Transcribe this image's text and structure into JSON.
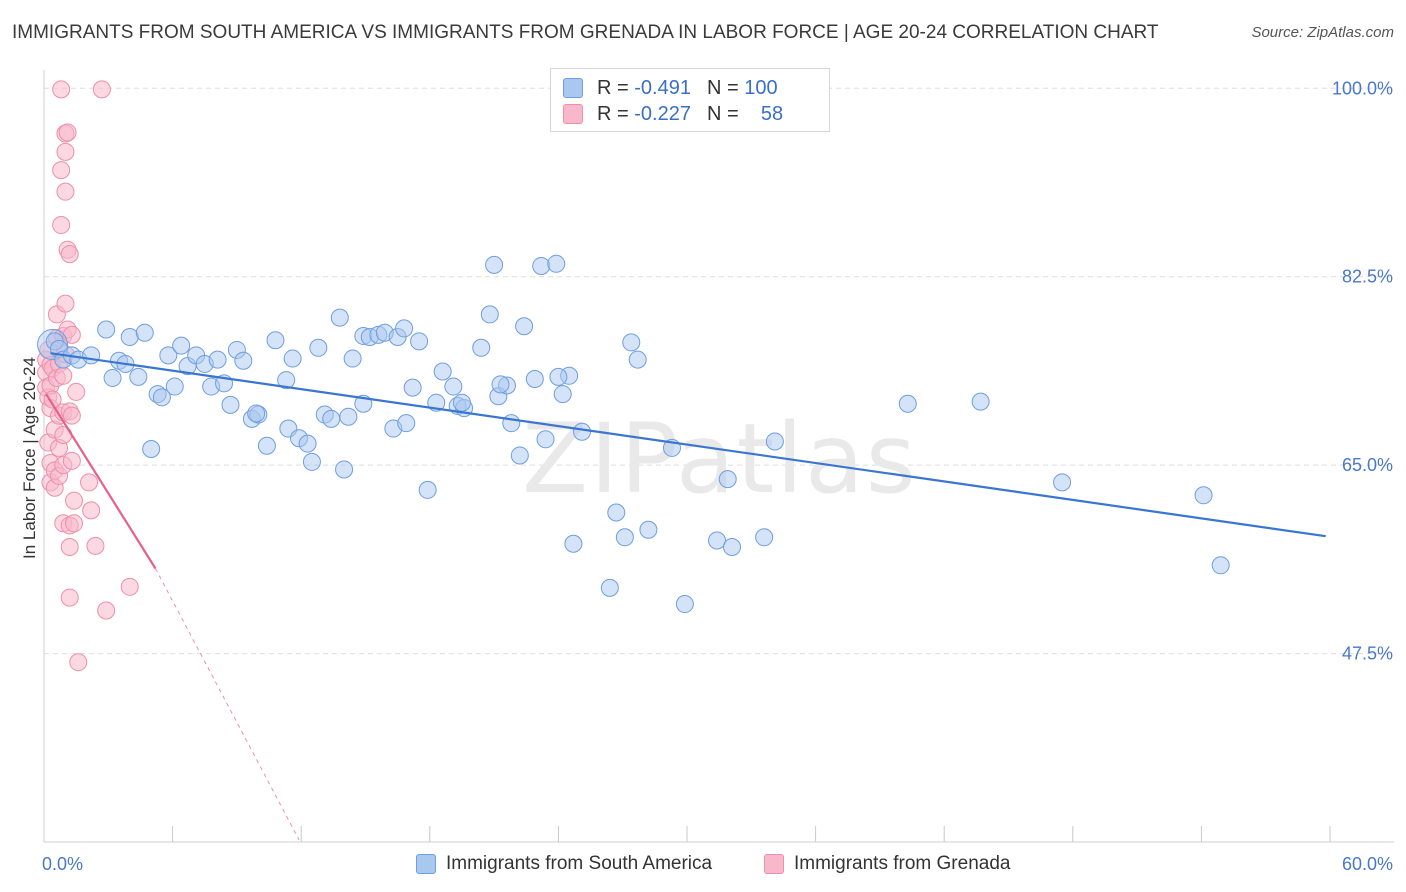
{
  "title": "IMMIGRANTS FROM SOUTH AMERICA VS IMMIGRANTS FROM GRENADA IN LABOR FORCE | AGE 20-24 CORRELATION CHART",
  "source": "Source: ZipAtlas.com",
  "watermark": "ZIPatlas",
  "legend": {
    "rows": [
      {
        "r_label": "R =",
        "r_value": "-0.491",
        "n_label": "N =",
        "n_value": "100"
      },
      {
        "r_label": "R =",
        "r_value": "-0.227",
        "n_label": "N =",
        "n_value": "58"
      }
    ]
  },
  "colors": {
    "blue_fill": "#a9c8f0",
    "blue_stroke": "#6f9ee0",
    "blue_line": "#3a76d0",
    "pink_fill": "#f7b8cb",
    "pink_stroke": "#ee8fab",
    "pink_line": "#e8608a",
    "tick_text": "#4a78c8",
    "grid": "#dddddd"
  },
  "chart_data": {
    "type": "scatter",
    "title": "IMMIGRANTS FROM SOUTH AMERICA VS IMMIGRANTS FROM GRENADA IN LABOR FORCE | AGE 20-24 CORRELATION CHART",
    "xlabel": "",
    "ylabel": "In Labor Force | Age 20-24",
    "xlim": [
      0,
      60
    ],
    "ylim": [
      30,
      101.7
    ],
    "x_tick_labels": [
      "0.0%",
      "60.0%"
    ],
    "y_ticks": [
      47.5,
      65.0,
      82.5,
      100.0
    ],
    "y_tick_labels": [
      "47.5%",
      "65.0%",
      "82.5%",
      "100.0%"
    ],
    "grid": true,
    "legend_position": "top-center",
    "series": [
      {
        "name": "Immigrants from South America",
        "color": "#a9c8f0",
        "trend": {
          "x": [
            0.3,
            59.8
          ],
          "y": [
            75.4,
            58.4
          ]
        },
        "points": [
          [
            0.5,
            76.5
          ],
          [
            0.7,
            75.8
          ],
          [
            0.9,
            74.8
          ],
          [
            1.3,
            75.2
          ],
          [
            1.6,
            74.8
          ],
          [
            2.2,
            75.2
          ],
          [
            2.9,
            77.6
          ],
          [
            3.2,
            73.1
          ],
          [
            3.5,
            74.7
          ],
          [
            4.0,
            76.9
          ],
          [
            4.4,
            73.2
          ],
          [
            4.7,
            77.3
          ],
          [
            5.0,
            66.5
          ],
          [
            5.3,
            71.6
          ],
          [
            5.5,
            71.3
          ],
          [
            5.8,
            75.2
          ],
          [
            6.1,
            72.3
          ],
          [
            6.4,
            76.1
          ],
          [
            6.7,
            74.2
          ],
          [
            7.1,
            75.2
          ],
          [
            7.5,
            74.4
          ],
          [
            7.8,
            72.3
          ],
          [
            8.1,
            74.8
          ],
          [
            8.4,
            72.6
          ],
          [
            8.7,
            70.6
          ],
          [
            9.0,
            75.7
          ],
          [
            9.3,
            74.7
          ],
          [
            9.7,
            69.3
          ],
          [
            10.0,
            69.7
          ],
          [
            10.4,
            66.8
          ],
          [
            10.8,
            76.6
          ],
          [
            11.3,
            72.9
          ],
          [
            11.4,
            68.4
          ],
          [
            11.9,
            67.5
          ],
          [
            12.3,
            67.0
          ],
          [
            12.5,
            65.3
          ],
          [
            12.8,
            75.9
          ],
          [
            13.1,
            69.7
          ],
          [
            13.4,
            69.3
          ],
          [
            13.8,
            78.7
          ],
          [
            14.0,
            64.6
          ],
          [
            14.4,
            74.9
          ],
          [
            14.9,
            70.7
          ],
          [
            14.9,
            77.0
          ],
          [
            15.2,
            76.9
          ],
          [
            15.6,
            77.1
          ],
          [
            15.9,
            77.3
          ],
          [
            16.3,
            68.4
          ],
          [
            16.5,
            76.9
          ],
          [
            16.8,
            77.7
          ],
          [
            16.9,
            68.9
          ],
          [
            17.2,
            72.2
          ],
          [
            17.5,
            76.5
          ],
          [
            17.9,
            62.7
          ],
          [
            18.3,
            70.8
          ],
          [
            18.6,
            73.7
          ],
          [
            19.1,
            72.3
          ],
          [
            19.3,
            70.5
          ],
          [
            19.6,
            70.3
          ],
          [
            20.4,
            75.9
          ],
          [
            20.8,
            79.0
          ],
          [
            21.0,
            83.6
          ],
          [
            21.2,
            71.4
          ],
          [
            21.6,
            72.4
          ],
          [
            21.8,
            68.9
          ],
          [
            22.2,
            65.9
          ],
          [
            22.4,
            77.9
          ],
          [
            22.9,
            73.0
          ],
          [
            23.2,
            83.5
          ],
          [
            23.4,
            67.4
          ],
          [
            23.9,
            83.7
          ],
          [
            24.2,
            71.6
          ],
          [
            24.5,
            73.3
          ],
          [
            24.7,
            57.7
          ],
          [
            25.1,
            68.1
          ],
          [
            26.4,
            53.6
          ],
          [
            26.7,
            60.6
          ],
          [
            27.1,
            58.3
          ],
          [
            27.4,
            76.4
          ],
          [
            27.7,
            74.8
          ],
          [
            28.2,
            59.0
          ],
          [
            29.3,
            66.6
          ],
          [
            29.9,
            52.1
          ],
          [
            31.4,
            58.0
          ],
          [
            31.9,
            63.7
          ],
          [
            32.1,
            57.4
          ],
          [
            33.6,
            58.3
          ],
          [
            34.1,
            67.2
          ],
          [
            40.3,
            70.7
          ],
          [
            43.7,
            70.9
          ],
          [
            47.5,
            63.4
          ],
          [
            54.1,
            62.2
          ],
          [
            54.9,
            55.7
          ],
          [
            19.5,
            70.8
          ],
          [
            14.2,
            69.5
          ],
          [
            11.6,
            74.9
          ],
          [
            9.9,
            69.8
          ],
          [
            24.0,
            73.2
          ],
          [
            21.3,
            72.5
          ],
          [
            3.8,
            74.4
          ]
        ]
      },
      {
        "name": "Immigrants from Grenada",
        "color": "#f7b8cb",
        "trend": {
          "x": [
            0.1,
            5.2
          ],
          "y": [
            71.6,
            55.4
          ]
        },
        "trend_extended": {
          "x": [
            5.2,
            11.9
          ],
          "y": [
            55.4,
            30.2
          ]
        },
        "points": [
          [
            0.1,
            74.8
          ],
          [
            0.1,
            73.6
          ],
          [
            0.1,
            72.2
          ],
          [
            0.2,
            75.7
          ],
          [
            0.2,
            71.3
          ],
          [
            0.2,
            67.1
          ],
          [
            0.3,
            74.3
          ],
          [
            0.3,
            72.4
          ],
          [
            0.3,
            70.3
          ],
          [
            0.3,
            65.2
          ],
          [
            0.3,
            63.4
          ],
          [
            0.4,
            74.0
          ],
          [
            0.4,
            71.1
          ],
          [
            0.5,
            68.3
          ],
          [
            0.5,
            64.5
          ],
          [
            0.5,
            62.9
          ],
          [
            0.6,
            79.0
          ],
          [
            0.6,
            76.8
          ],
          [
            0.6,
            73.1
          ],
          [
            0.7,
            74.4
          ],
          [
            0.7,
            69.6
          ],
          [
            0.7,
            66.6
          ],
          [
            0.7,
            64.0
          ],
          [
            0.8,
            87.3
          ],
          [
            0.8,
            92.4
          ],
          [
            0.8,
            99.9
          ],
          [
            0.9,
            77.0
          ],
          [
            0.9,
            73.3
          ],
          [
            0.9,
            69.9
          ],
          [
            0.9,
            67.8
          ],
          [
            0.9,
            65.0
          ],
          [
            0.9,
            59.6
          ],
          [
            1.0,
            94.1
          ],
          [
            1.0,
            95.8
          ],
          [
            1.0,
            90.4
          ],
          [
            1.0,
            80.0
          ],
          [
            1.0,
            75.3
          ],
          [
            1.1,
            95.9
          ],
          [
            1.1,
            85.0
          ],
          [
            1.1,
            77.6
          ],
          [
            1.2,
            70.0
          ],
          [
            1.2,
            59.4
          ],
          [
            1.2,
            57.4
          ],
          [
            1.2,
            52.7
          ],
          [
            1.2,
            84.6
          ],
          [
            1.3,
            77.1
          ],
          [
            1.3,
            69.6
          ],
          [
            1.3,
            65.4
          ],
          [
            1.4,
            61.7
          ],
          [
            1.4,
            59.6
          ],
          [
            1.5,
            71.8
          ],
          [
            1.6,
            46.7
          ],
          [
            2.1,
            63.4
          ],
          [
            2.2,
            60.8
          ],
          [
            2.4,
            57.5
          ],
          [
            2.7,
            99.9
          ],
          [
            2.9,
            51.5
          ],
          [
            4.0,
            53.7
          ]
        ]
      }
    ]
  }
}
